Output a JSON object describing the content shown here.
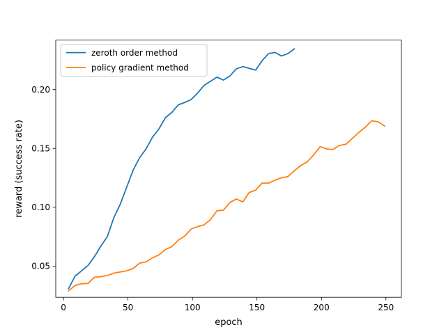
{
  "chart_data": {
    "type": "line",
    "title": "",
    "xlabel": "epoch",
    "ylabel": "reward (success rate)",
    "xlim": [
      -6,
      262
    ],
    "ylim": [
      0.0235,
      0.242
    ],
    "x_ticks": [
      0,
      50,
      100,
      150,
      200,
      250
    ],
    "y_ticks": [
      0.05,
      0.1,
      0.15,
      0.2
    ],
    "x_tick_labels": [
      "0",
      "50",
      "100",
      "150",
      "200",
      "250"
    ],
    "y_tick_labels": [
      "0.05",
      "0.10",
      "0.15",
      "0.20"
    ],
    "grid": false,
    "legend_position": "upper-left",
    "series": [
      {
        "name": "zeroth order method",
        "color": "#1f77b4",
        "x": [
          4,
          9,
          14,
          19,
          24,
          29,
          34,
          39,
          44,
          49,
          54,
          59,
          64,
          69,
          74,
          79,
          84,
          89,
          94,
          99,
          104,
          109,
          114,
          119,
          124,
          129,
          134,
          139,
          144,
          149,
          154,
          159,
          164,
          169,
          174,
          179
        ],
        "y": [
          0.031,
          0.0415,
          0.046,
          0.0505,
          0.058,
          0.067,
          0.075,
          0.091,
          0.1025,
          0.117,
          0.1315,
          0.142,
          0.1495,
          0.1595,
          0.1665,
          0.176,
          0.1805,
          0.187,
          0.189,
          0.1915,
          0.197,
          0.2035,
          0.207,
          0.2105,
          0.208,
          0.2115,
          0.2175,
          0.2195,
          0.218,
          0.2165,
          0.2245,
          0.2305,
          0.2315,
          0.2285,
          0.2305,
          0.2345
        ]
      },
      {
        "name": "policy gradient method",
        "color": "#ff7f0e",
        "x": [
          4,
          9,
          14,
          19,
          24,
          29,
          34,
          39,
          44,
          49,
          54,
          59,
          64,
          69,
          74,
          79,
          84,
          89,
          94,
          99,
          104,
          109,
          114,
          119,
          124,
          129,
          134,
          139,
          144,
          149,
          154,
          159,
          164,
          169,
          174,
          179,
          184,
          189,
          194,
          199,
          204,
          209,
          214,
          219,
          224,
          229,
          234,
          239,
          244,
          249
        ],
        "y": [
          0.029,
          0.0335,
          0.035,
          0.0352,
          0.0405,
          0.041,
          0.042,
          0.044,
          0.045,
          0.046,
          0.048,
          0.0525,
          0.0535,
          0.057,
          0.0595,
          0.064,
          0.0665,
          0.072,
          0.0755,
          0.0815,
          0.0835,
          0.085,
          0.0895,
          0.097,
          0.0975,
          0.104,
          0.107,
          0.1045,
          0.1125,
          0.1145,
          0.1205,
          0.1205,
          0.123,
          0.125,
          0.126,
          0.131,
          0.1355,
          0.1385,
          0.1445,
          0.1515,
          0.1495,
          0.149,
          0.1525,
          0.1535,
          0.1585,
          0.1635,
          0.168,
          0.1735,
          0.1725,
          0.169
        ]
      }
    ]
  }
}
